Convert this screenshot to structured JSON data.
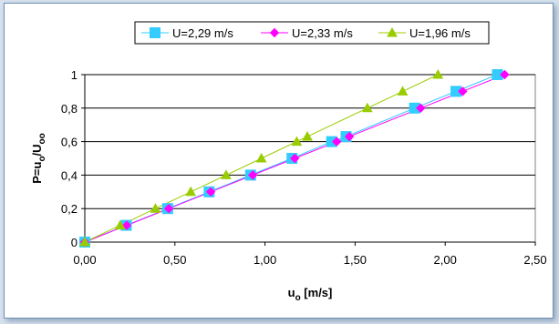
{
  "chart_data": {
    "type": "line",
    "xlabel": "u",
    "xlabel_sub": "o",
    "xlabel_unit": " [m/s]",
    "ylabel": "P=u",
    "ylabel_sub1": "o",
    "ylabel_mid": "/U",
    "ylabel_sub2": "oo",
    "xlim": [
      0,
      2.5
    ],
    "ylim": [
      0,
      1
    ],
    "x_ticks": [
      "0,00",
      "0,50",
      "1,00",
      "1,50",
      "2,00",
      "2,50"
    ],
    "y_ticks": [
      "0",
      "0,2",
      "0,4",
      "0,6",
      "0,8",
      "1"
    ],
    "grid": "horizontal",
    "legend_position": "top",
    "series": [
      {
        "name": "U=2,29 m/s",
        "color": "#33ccff",
        "marker": "square",
        "x": [
          0,
          0.23,
          0.46,
          0.69,
          0.92,
          1.15,
          1.37,
          1.45,
          1.83,
          2.06,
          2.29
        ],
        "y": [
          0,
          0.1,
          0.2,
          0.3,
          0.4,
          0.5,
          0.6,
          0.63,
          0.8,
          0.9,
          1.0
        ]
      },
      {
        "name": "U=2,33 m/s",
        "color": "#ff00ff",
        "marker": "diamond",
        "x": [
          0,
          0.233,
          0.466,
          0.699,
          0.932,
          1.165,
          1.398,
          1.468,
          1.864,
          2.097,
          2.33
        ],
        "y": [
          0,
          0.1,
          0.2,
          0.3,
          0.4,
          0.5,
          0.6,
          0.63,
          0.8,
          0.9,
          1.0
        ]
      },
      {
        "name": "U=1,96 m/s",
        "color": "#99cc00",
        "marker": "triangle",
        "x": [
          0,
          0.196,
          0.392,
          0.588,
          0.784,
          0.98,
          1.176,
          1.235,
          1.568,
          1.764,
          1.96
        ],
        "y": [
          0,
          0.1,
          0.2,
          0.3,
          0.4,
          0.5,
          0.6,
          0.63,
          0.8,
          0.9,
          1.0
        ]
      }
    ]
  }
}
